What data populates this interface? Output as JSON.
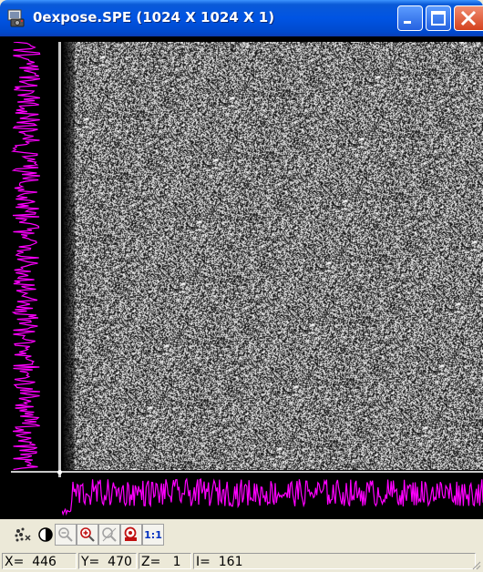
{
  "window": {
    "title": "0expose.SPE (1024 X 1024 X 1)"
  },
  "colors": {
    "titlebar": "#0054e3",
    "profile": "#ff00ff",
    "cursor": "#c8c8c8",
    "background": "#000000"
  },
  "icons": {
    "app": "camera-icon",
    "minimize": "minimize-icon",
    "maximize": "maximize-icon",
    "close": "close-icon"
  },
  "toolbar": {
    "tools": [
      {
        "name": "cursor-mode-icon",
        "enabled": true
      },
      {
        "name": "contrast-icon",
        "enabled": true
      },
      {
        "name": "zoom-out-icon",
        "enabled": false
      },
      {
        "name": "zoom-in-icon",
        "enabled": true
      },
      {
        "name": "zoom-region-icon",
        "enabled": false
      },
      {
        "name": "region-of-interest-icon",
        "enabled": true
      },
      {
        "name": "zoom-1to1-icon",
        "label": "1:1",
        "enabled": true
      }
    ]
  },
  "status": {
    "x": "X=  446",
    "y": "Y=  470",
    "z": "Z=   1",
    "i": "I=  161"
  }
}
